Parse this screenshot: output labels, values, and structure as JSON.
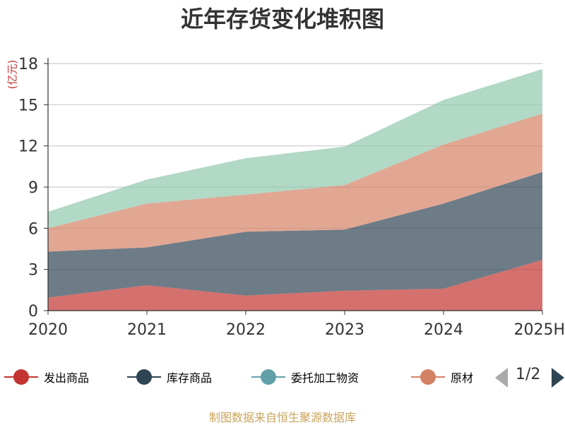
{
  "chart_data": {
    "type": "area",
    "stacked": true,
    "title": "近年存货变化堆积图",
    "y_unit": "(亿元)",
    "x": [
      "2020",
      "2021",
      "2022",
      "2023",
      "2024",
      "2025H"
    ],
    "y_ticks": [
      "0",
      "3",
      "6",
      "9",
      "12",
      "15",
      "18"
    ],
    "ylim": [
      0,
      18
    ],
    "grid": true,
    "legend_position": "bottom",
    "series": [
      {
        "name": "发出商品",
        "color": "#c23531",
        "values": [
          0.95,
          1.85,
          1.1,
          1.45,
          1.6,
          3.7
        ]
      },
      {
        "name": "库存商品",
        "color": "#2f4554",
        "values": [
          3.35,
          2.75,
          4.65,
          4.45,
          6.2,
          6.4
        ]
      },
      {
        "name": "委托加工物资",
        "color": "#61a0a8",
        "values": [
          0.0,
          0.0,
          0.0,
          0.0,
          0.0,
          0.0
        ]
      },
      {
        "name": "原材料",
        "color": "#d48265",
        "values": [
          1.7,
          3.2,
          2.7,
          3.25,
          4.3,
          4.25
        ]
      },
      {
        "name": "",
        "color": "#91c7ae",
        "values": [
          1.2,
          1.75,
          2.65,
          2.8,
          3.25,
          3.25
        ]
      }
    ]
  },
  "legend": {
    "items": [
      "发出商品",
      "库存商品",
      "委托加工物资",
      "原材"
    ],
    "page": "1/2"
  },
  "source_note": "制图数据来自恒生聚源数据库"
}
